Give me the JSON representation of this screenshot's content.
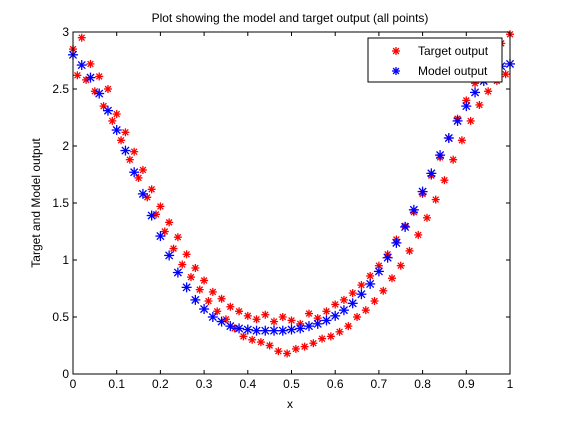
{
  "chart_data": {
    "type": "scatter",
    "title": "Plot showing the model and target output (all points)",
    "xlabel": "x",
    "ylabel": "Target and Model output",
    "xlim": [
      0,
      1
    ],
    "ylim": [
      0,
      3
    ],
    "grid": false,
    "legend_position": "top-right",
    "x_tick_labels": [
      "0",
      "0.1",
      "0.2",
      "0.3",
      "0.4",
      "0.5",
      "0.6",
      "0.7",
      "0.8",
      "0.9",
      "1"
    ],
    "y_tick_labels": [
      "0",
      "0.5",
      "1",
      "1.5",
      "2",
      "2.5",
      "3"
    ],
    "series": [
      {
        "name": "Target output",
        "marker": "asterisk",
        "color": "#ff0000",
        "x": [
          0.0,
          0.01,
          0.02,
          0.03,
          0.04,
          0.05,
          0.06,
          0.07,
          0.08,
          0.09,
          0.1,
          0.11,
          0.12,
          0.13,
          0.14,
          0.15,
          0.16,
          0.17,
          0.18,
          0.19,
          0.2,
          0.21,
          0.22,
          0.23,
          0.24,
          0.25,
          0.26,
          0.27,
          0.28,
          0.29,
          0.3,
          0.31,
          0.32,
          0.33,
          0.34,
          0.35,
          0.36,
          0.37,
          0.38,
          0.39,
          0.4,
          0.41,
          0.42,
          0.43,
          0.44,
          0.45,
          0.46,
          0.47,
          0.48,
          0.49,
          0.5,
          0.51,
          0.52,
          0.53,
          0.54,
          0.55,
          0.56,
          0.57,
          0.58,
          0.59,
          0.6,
          0.61,
          0.62,
          0.63,
          0.64,
          0.65,
          0.66,
          0.67,
          0.68,
          0.69,
          0.7,
          0.71,
          0.72,
          0.73,
          0.74,
          0.75,
          0.76,
          0.77,
          0.78,
          0.79,
          0.8,
          0.81,
          0.82,
          0.83,
          0.84,
          0.85,
          0.86,
          0.87,
          0.88,
          0.89,
          0.9,
          0.91,
          0.92,
          0.93,
          0.94,
          0.95,
          0.96,
          0.97,
          0.98,
          0.99,
          1.0
        ],
        "y": [
          2.85,
          2.62,
          2.95,
          2.58,
          2.72,
          2.48,
          2.61,
          2.35,
          2.5,
          2.22,
          2.28,
          2.05,
          2.12,
          1.88,
          1.95,
          1.72,
          1.79,
          1.55,
          1.62,
          1.4,
          1.47,
          1.25,
          1.33,
          1.1,
          1.2,
          0.96,
          1.05,
          0.85,
          0.93,
          0.74,
          0.82,
          0.64,
          0.72,
          0.55,
          0.66,
          0.48,
          0.59,
          0.4,
          0.55,
          0.33,
          0.51,
          0.3,
          0.48,
          0.28,
          0.52,
          0.25,
          0.46,
          0.2,
          0.5,
          0.18,
          0.47,
          0.22,
          0.44,
          0.24,
          0.53,
          0.27,
          0.49,
          0.31,
          0.55,
          0.33,
          0.61,
          0.37,
          0.65,
          0.42,
          0.71,
          0.5,
          0.78,
          0.56,
          0.86,
          0.64,
          0.95,
          0.73,
          1.05,
          0.84,
          1.18,
          0.95,
          1.3,
          1.08,
          1.42,
          1.22,
          1.58,
          1.37,
          1.74,
          1.53,
          1.9,
          1.7,
          2.07,
          1.88,
          2.24,
          2.05,
          2.4,
          2.22,
          2.55,
          2.36,
          2.68,
          2.48,
          2.8,
          2.57,
          2.9,
          2.63,
          2.98
        ]
      },
      {
        "name": "Model output",
        "marker": "asterisk",
        "color": "#0000ff",
        "x": [
          0.0,
          0.02,
          0.04,
          0.06,
          0.08,
          0.1,
          0.12,
          0.14,
          0.16,
          0.18,
          0.2,
          0.22,
          0.24,
          0.26,
          0.28,
          0.3,
          0.32,
          0.34,
          0.36,
          0.38,
          0.4,
          0.42,
          0.44,
          0.46,
          0.48,
          0.5,
          0.52,
          0.54,
          0.56,
          0.58,
          0.6,
          0.62,
          0.64,
          0.66,
          0.68,
          0.7,
          0.72,
          0.74,
          0.76,
          0.78,
          0.8,
          0.82,
          0.84,
          0.86,
          0.88,
          0.9,
          0.92,
          0.94,
          0.96,
          0.98,
          1.0
        ],
        "y": [
          2.8,
          2.71,
          2.6,
          2.46,
          2.31,
          2.14,
          1.96,
          1.77,
          1.58,
          1.39,
          1.21,
          1.04,
          0.89,
          0.76,
          0.65,
          0.57,
          0.5,
          0.46,
          0.42,
          0.4,
          0.39,
          0.38,
          0.38,
          0.38,
          0.38,
          0.39,
          0.4,
          0.42,
          0.44,
          0.47,
          0.51,
          0.56,
          0.62,
          0.7,
          0.79,
          0.9,
          1.02,
          1.15,
          1.29,
          1.44,
          1.6,
          1.76,
          1.92,
          2.07,
          2.22,
          2.35,
          2.47,
          2.57,
          2.65,
          2.7,
          2.72
        ]
      }
    ]
  }
}
